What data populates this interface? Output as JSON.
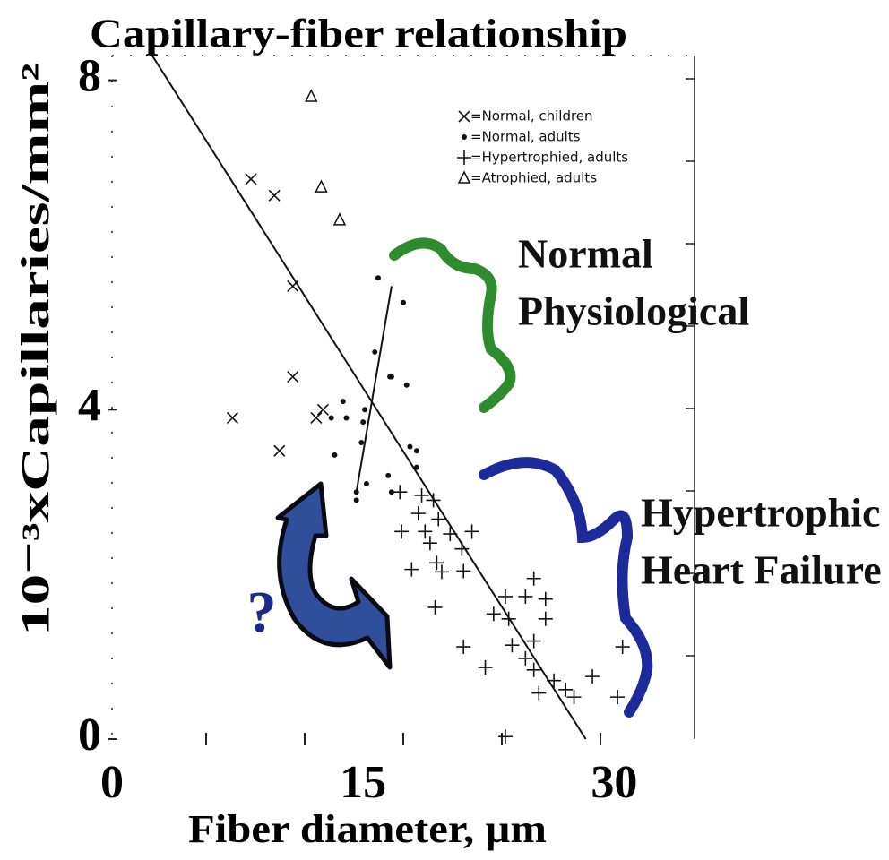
{
  "chart_data": {
    "type": "scatter",
    "title": "Capillary-fiber relationship",
    "x_label": "Fiber diameter, µm",
    "y_label": "10⁻³xCapillaries/mm²",
    "xlim": [
      0,
      34.8
    ],
    "ylim": [
      0,
      8.3
    ],
    "xticks": [
      0,
      15,
      30
    ],
    "yticks": [
      0,
      4,
      8
    ],
    "series": [
      {
        "name": "=Normal, children",
        "marker": "x",
        "color": "#111111",
        "x": [
          8.3,
          9.7,
          10.8,
          10.8,
          7.2,
          10.0,
          12.2,
          12.6
        ],
        "values": [
          6.8,
          6.6,
          5.5,
          4.4,
          3.9,
          3.5,
          3.9,
          4.0
        ]
      },
      {
        "name": "=Normal, adults",
        "marker": "dot",
        "color": "#111111",
        "x": [
          15.9,
          17.4,
          15.7,
          16.6,
          16.7,
          17.6,
          13.8,
          13.1,
          14.0,
          15.1,
          15.0,
          14.9,
          17.8,
          18.2,
          13.3,
          18.2,
          16.5,
          16.7,
          14.6,
          14.6,
          15.2
        ],
        "values": [
          5.6,
          5.3,
          4.7,
          4.4,
          4.4,
          4.3,
          4.1,
          3.9,
          3.9,
          4.0,
          3.85,
          3.6,
          3.55,
          3.5,
          3.45,
          3.3,
          3.2,
          3.0,
          3.0,
          2.9,
          3.1
        ]
      },
      {
        "name": "=Hypertrophied, adults",
        "marker": "plus",
        "color": "#111111",
        "x": [
          17.2,
          18.5,
          19.2,
          18.3,
          19.5,
          17.3,
          18.7,
          20.2,
          21.5,
          19.0,
          20.9,
          17.9,
          19.4,
          19.7,
          21.0,
          19.3,
          25.2,
          23.5,
          24.7,
          25.9,
          22.8,
          23.7,
          25.9,
          25.2,
          21.0,
          23.9,
          30.5,
          24.7,
          22.3,
          25.2,
          28.7,
          26.4,
          27.1,
          25.5,
          27.6,
          30.2,
          23.5
        ],
        "values": [
          3.0,
          2.96,
          2.9,
          2.74,
          2.67,
          2.52,
          2.52,
          2.49,
          2.52,
          2.38,
          2.31,
          2.06,
          2.14,
          2.03,
          2.04,
          1.6,
          1.95,
          1.73,
          1.73,
          1.7,
          1.52,
          1.46,
          1.46,
          1.19,
          1.12,
          1.14,
          1.12,
          0.98,
          0.87,
          0.84,
          0.76,
          0.71,
          0.6,
          0.56,
          0.51,
          0.51,
          0.03
        ]
      },
      {
        "name": "=Atrophied, adults",
        "marker": "triangle",
        "color": "#111111",
        "x": [
          11.9,
          12.5,
          13.6
        ],
        "values": [
          7.8,
          6.7,
          6.3
        ]
      }
    ],
    "lines": [
      {
        "x": [
          2.4,
          28.3
        ],
        "values": [
          8.3,
          0
        ]
      },
      {
        "x": [
          14.6,
          16.7
        ],
        "values": [
          3.0,
          5.5
        ]
      }
    ],
    "annotations": [
      {
        "lines": [
          "Normal",
          "Physiological"
        ],
        "color": "#111111"
      },
      {
        "lines": [
          "Hypertrophic",
          "Heart Failure"
        ],
        "color": "#111111"
      },
      {
        "lines": [
          "?"
        ],
        "color": "#1c2a8c"
      }
    ]
  }
}
